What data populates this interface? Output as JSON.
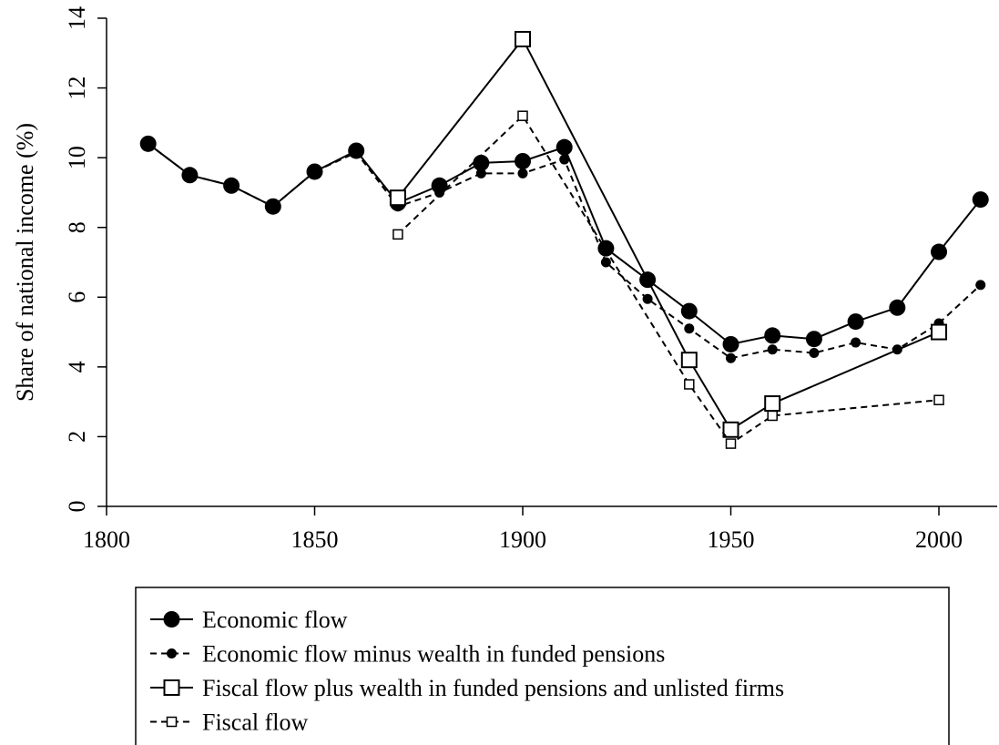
{
  "chart_data": {
    "type": "line",
    "ylabel": "Share of national income (%)",
    "xlim": [
      1800,
      2014
    ],
    "ylim": [
      0,
      14
    ],
    "xticks": [
      1800,
      1850,
      1900,
      1950,
      2000
    ],
    "yticks": [
      0,
      2,
      4,
      6,
      8,
      10,
      12,
      14
    ],
    "series": [
      {
        "name": "Economic flow",
        "color": "#000000",
        "dashed": false,
        "marker": "circle",
        "marker_size": "large",
        "x": [
          1810,
          1820,
          1830,
          1840,
          1850,
          1860,
          1870,
          1880,
          1890,
          1900,
          1910,
          1920,
          1930,
          1940,
          1950,
          1960,
          1970,
          1980,
          1990,
          2000,
          2010
        ],
        "values": [
          10.4,
          9.5,
          9.2,
          8.6,
          9.6,
          10.2,
          8.7,
          9.2,
          9.85,
          9.9,
          10.3,
          7.4,
          6.5,
          5.6,
          4.65,
          4.9,
          4.8,
          5.3,
          5.7,
          7.3,
          8.8
        ]
      },
      {
        "name": "Economic flow minus wealth in funded pensions",
        "color": "#000000",
        "dashed": true,
        "marker": "circle",
        "marker_size": "small",
        "x": [
          1810,
          1820,
          1830,
          1840,
          1850,
          1860,
          1870,
          1880,
          1890,
          1900,
          1910,
          1920,
          1930,
          1940,
          1950,
          1960,
          1970,
          1980,
          1990,
          2000,
          2010
        ],
        "values": [
          10.4,
          9.5,
          9.2,
          8.6,
          9.6,
          10.15,
          8.6,
          9.0,
          9.55,
          9.55,
          9.95,
          7.0,
          5.95,
          5.1,
          4.25,
          4.5,
          4.4,
          4.7,
          4.5,
          5.25,
          6.35
        ]
      },
      {
        "name": "Fiscal flow plus wealth in funded pensions and unlisted firms",
        "color": "#000000",
        "dashed": false,
        "marker": "square",
        "marker_size": "large",
        "x": [
          1870,
          1900,
          1940,
          1950,
          1960,
          2000
        ],
        "values": [
          8.85,
          13.4,
          4.2,
          2.2,
          2.95,
          5.0
        ]
      },
      {
        "name": "Fiscal flow",
        "color": "#000000",
        "dashed": true,
        "marker": "square",
        "marker_size": "small",
        "x": [
          1870,
          1900,
          1940,
          1950,
          1960,
          2000
        ],
        "values": [
          7.8,
          11.2,
          3.5,
          1.8,
          2.6,
          3.05
        ]
      }
    ]
  }
}
